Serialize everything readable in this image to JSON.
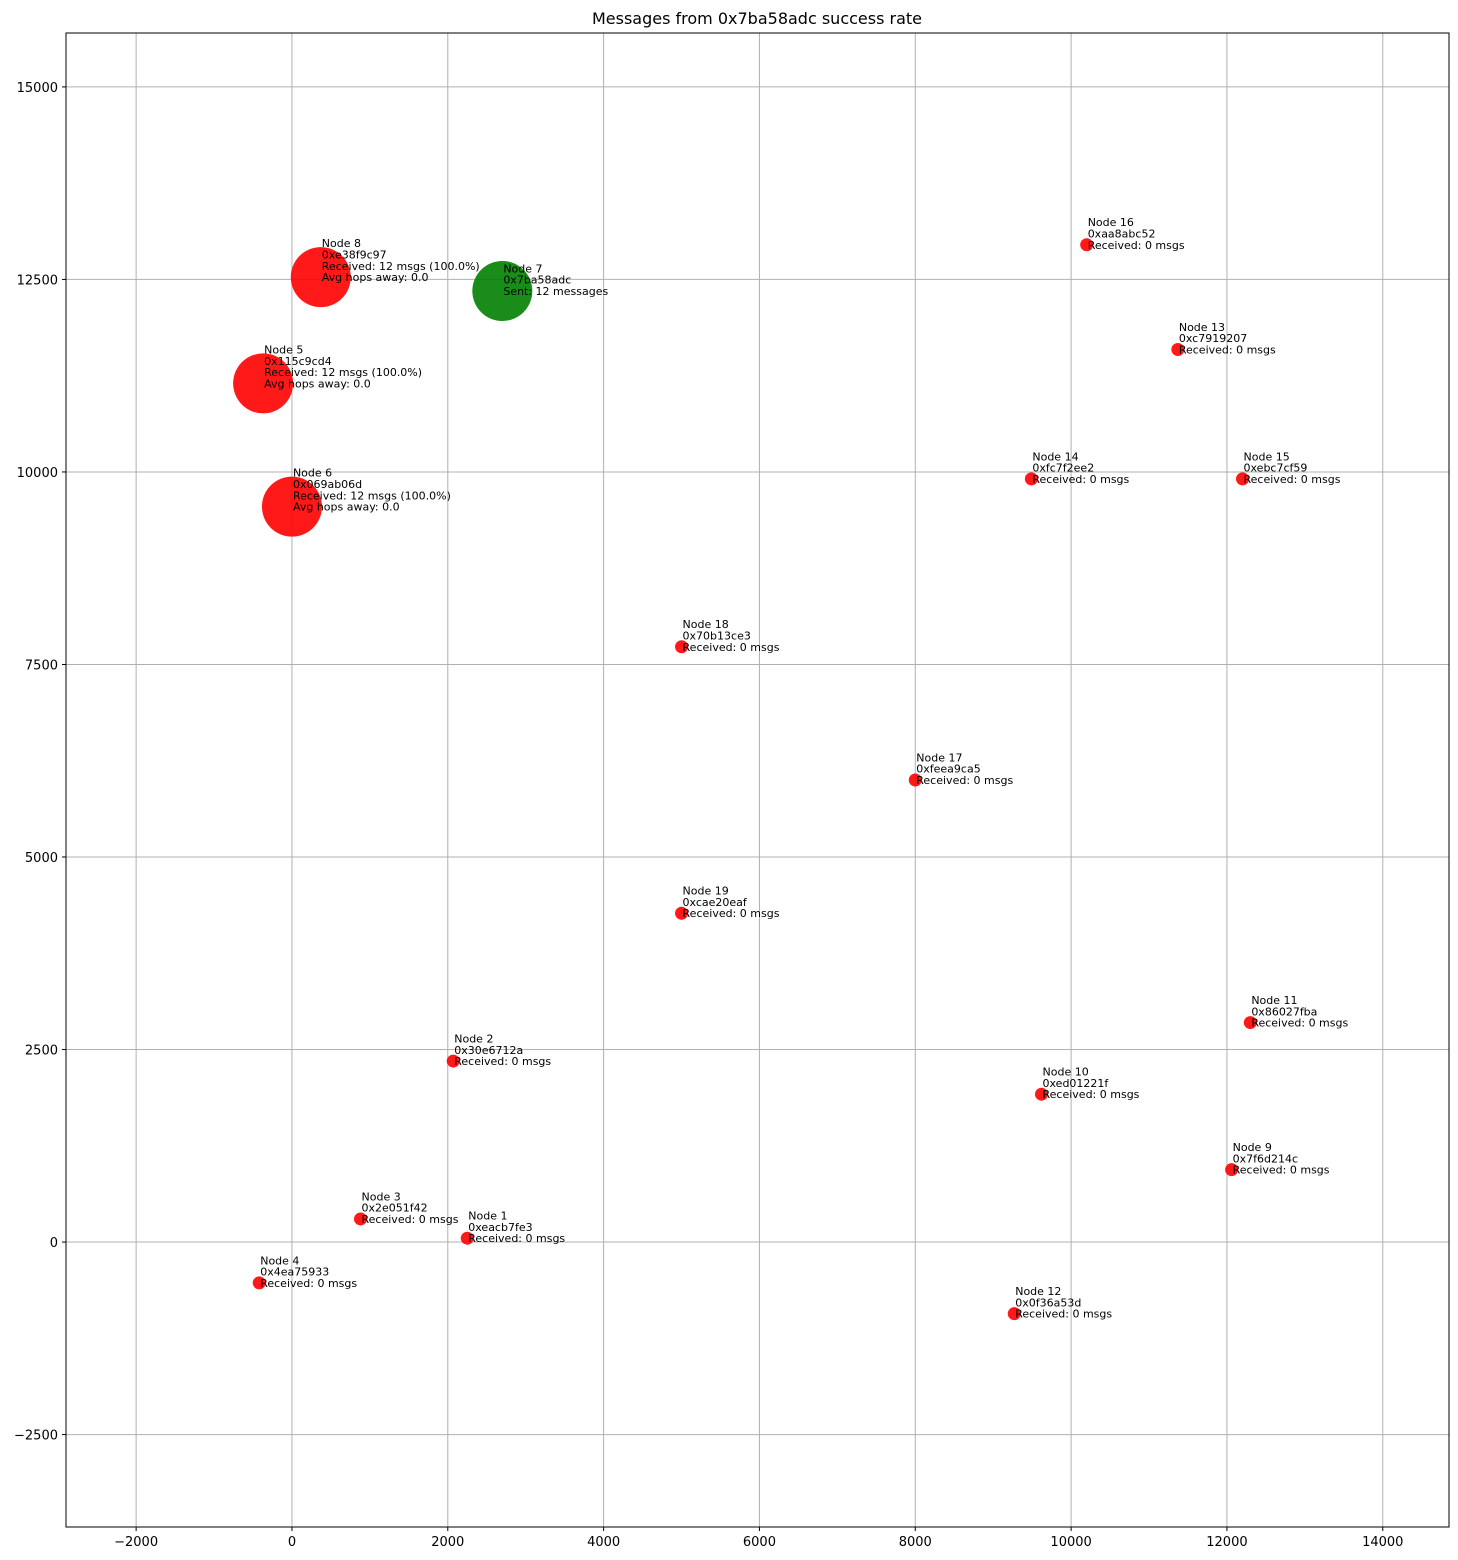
{
  "chart_data": {
    "type": "scatter",
    "title": "Messages from 0x7ba58adc success rate",
    "xlabel": "",
    "ylabel": "",
    "xlim": [
      -2900,
      14850
    ],
    "ylim": [
      -3700,
      15700
    ],
    "grid": true,
    "xticks": [
      -2000,
      0,
      2000,
      4000,
      6000,
      8000,
      10000,
      12000,
      14000
    ],
    "xtick_labels": [
      "−2000",
      "0",
      "2000",
      "4000",
      "6000",
      "8000",
      "10000",
      "12000",
      "14000"
    ],
    "yticks": [
      -2500,
      0,
      2500,
      5000,
      7500,
      10000,
      12500,
      15000
    ],
    "ytick_labels": [
      "−2500",
      "0",
      "2500",
      "5000",
      "7500",
      "10000",
      "12500",
      "15000"
    ],
    "colors": {
      "receiver": "#ff0000",
      "sender": "#008000"
    },
    "points": [
      {
        "x": 2250,
        "y": 50,
        "label": [
          "Node 1",
          "0xeacb7fe3",
          "Received: 0 msgs"
        ],
        "role": "receiver",
        "received": 0
      },
      {
        "x": 2070,
        "y": 2350,
        "label": [
          "Node 2",
          "0x30e6712a",
          "Received: 0 msgs"
        ],
        "role": "receiver",
        "received": 0
      },
      {
        "x": 880,
        "y": 300,
        "label": [
          "Node 3",
          "0x2e051f42",
          "Received: 0 msgs"
        ],
        "role": "receiver",
        "received": 0
      },
      {
        "x": -420,
        "y": -530,
        "label": [
          "Node 4",
          "0x4ea75933",
          "Received: 0 msgs"
        ],
        "role": "receiver",
        "received": 0
      },
      {
        "x": -370,
        "y": 11150,
        "label": [
          "Node 5",
          "0x115c9cd4",
          "Received: 12 msgs (100.0%)",
          "Avg hops away: 0.0"
        ],
        "role": "receiver",
        "received": 12
      },
      {
        "x": 0,
        "y": 9550,
        "label": [
          "Node 6",
          "0x069ab06d",
          "Received: 12 msgs (100.0%)",
          "Avg hops away: 0.0"
        ],
        "role": "receiver",
        "received": 12
      },
      {
        "x": 2700,
        "y": 12350,
        "label": [
          "Node 7",
          "0x7ba58adc",
          "Sent: 12 messages"
        ],
        "role": "sender",
        "received": 12
      },
      {
        "x": 370,
        "y": 12530,
        "label": [
          "Node 8",
          "0xe38f9c97",
          "Received: 12 msgs (100.0%)",
          "Avg hops away: 0.0"
        ],
        "role": "receiver",
        "received": 12
      },
      {
        "x": 12060,
        "y": 940,
        "label": [
          "Node 9",
          "0x7f6d214c",
          "Received: 0 msgs"
        ],
        "role": "receiver",
        "received": 0
      },
      {
        "x": 9620,
        "y": 1920,
        "label": [
          "Node 10",
          "0xed01221f",
          "Received: 0 msgs"
        ],
        "role": "receiver",
        "received": 0
      },
      {
        "x": 12300,
        "y": 2850,
        "label": [
          "Node 11",
          "0x86027fba",
          "Received: 0 msgs"
        ],
        "role": "receiver",
        "received": 0
      },
      {
        "x": 9270,
        "y": -930,
        "label": [
          "Node 12",
          "0x0f36a53d",
          "Received: 0 msgs"
        ],
        "role": "receiver",
        "received": 0
      },
      {
        "x": 11370,
        "y": 11590,
        "label": [
          "Node 13",
          "0xc7919207",
          "Received: 0 msgs"
        ],
        "role": "receiver",
        "received": 0
      },
      {
        "x": 9490,
        "y": 9910,
        "label": [
          "Node 14",
          "0xfc7f2ee2",
          "Received: 0 msgs"
        ],
        "role": "receiver",
        "received": 0
      },
      {
        "x": 12200,
        "y": 9910,
        "label": [
          "Node 15",
          "0xebc7cf59",
          "Received: 0 msgs"
        ],
        "role": "receiver",
        "received": 0
      },
      {
        "x": 10200,
        "y": 12950,
        "label": [
          "Node 16",
          "0xaa8abc52",
          "Received: 0 msgs"
        ],
        "role": "receiver",
        "received": 0
      },
      {
        "x": 8000,
        "y": 6000,
        "label": [
          "Node 17",
          "0xfeea9ca5",
          "Received: 0 msgs"
        ],
        "role": "receiver",
        "received": 0
      },
      {
        "x": 5000,
        "y": 7730,
        "label": [
          "Node 18",
          "0x70b13ce3",
          "Received: 0 msgs"
        ],
        "role": "receiver",
        "received": 0
      },
      {
        "x": 5000,
        "y": 4270,
        "label": [
          "Node 19",
          "0xcae20eaf",
          "Received: 0 msgs"
        ],
        "role": "receiver",
        "received": 0
      }
    ]
  }
}
